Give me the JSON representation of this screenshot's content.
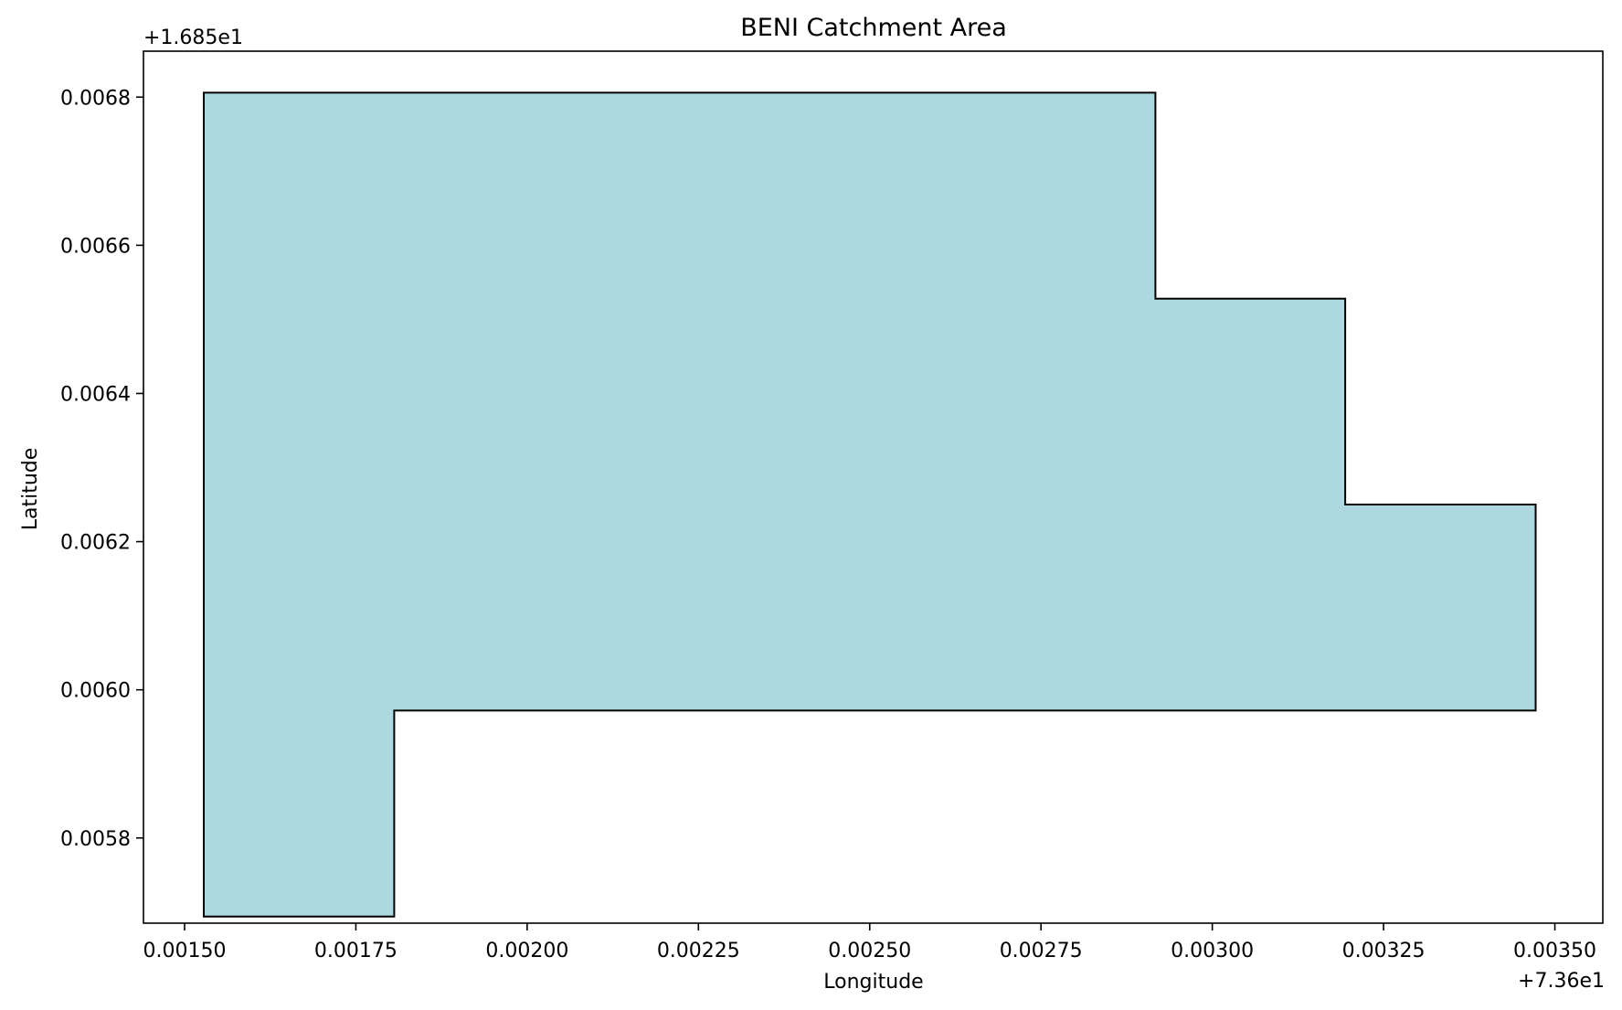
{
  "chart_data": {
    "type": "area",
    "title": "BENI Catchment Area",
    "xlabel": "Longitude",
    "ylabel": "Latitude",
    "x_offset_label": "+7.36e1",
    "y_offset_label": "+1.685e1",
    "xlim": [
      0.00144,
      0.00357
    ],
    "ylim": [
      0.005685,
      0.006862
    ],
    "x_ticks": [
      0.0015,
      0.00175,
      0.002,
      0.00225,
      0.0025,
      0.00275,
      0.003,
      0.00325,
      0.0035
    ],
    "x_tick_labels": [
      "0.00150",
      "0.00175",
      "0.00200",
      "0.00225",
      "0.00250",
      "0.00275",
      "0.00300",
      "0.00325",
      "0.00350"
    ],
    "y_ticks": [
      0.0058,
      0.006,
      0.0062,
      0.0064,
      0.0066,
      0.0068
    ],
    "y_tick_labels": [
      "0.0058",
      "0.0060",
      "0.0062",
      "0.0064",
      "0.0066",
      "0.0068"
    ],
    "grid": false,
    "fill_color": "#ADD8E0",
    "edge_color": "#000000",
    "polygon": [
      {
        "x": 0.001528,
        "y": 0.006806
      },
      {
        "x": 0.002917,
        "y": 0.006806
      },
      {
        "x": 0.002917,
        "y": 0.006528
      },
      {
        "x": 0.003194,
        "y": 0.006528
      },
      {
        "x": 0.003194,
        "y": 0.00625
      },
      {
        "x": 0.003472,
        "y": 0.00625
      },
      {
        "x": 0.003472,
        "y": 0.005972
      },
      {
        "x": 0.001806,
        "y": 0.005972
      },
      {
        "x": 0.001806,
        "y": 0.005694
      },
      {
        "x": 0.001528,
        "y": 0.005694
      }
    ]
  }
}
